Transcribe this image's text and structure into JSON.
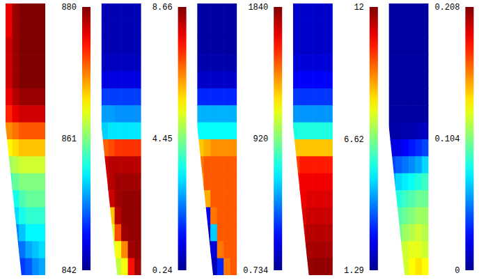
{
  "chart_data": [
    {
      "type": "heatmap",
      "cells": [
        [
          876,
          879,
          880,
          880,
          880,
          880
        ],
        [
          876,
          879,
          880,
          880,
          880,
          880
        ],
        [
          877,
          879,
          880,
          880,
          880,
          880
        ],
        [
          877,
          879,
          880,
          880,
          880,
          880
        ],
        [
          877,
          879,
          880,
          880,
          880,
          880
        ],
        [
          876,
          878,
          879,
          879,
          879,
          879
        ],
        [
          874,
          876,
          877,
          877,
          877,
          877
        ],
        [
          870,
          871,
          872,
          872,
          872,
          872
        ],
        [
          866,
          867,
          868,
          868,
          868,
          868
        ],
        [
          862,
          863,
          864,
          864,
          864,
          864
        ],
        [
          858,
          860,
          861,
          861,
          861,
          861
        ],
        [
          null,
          857,
          859,
          860,
          860,
          860
        ],
        [
          null,
          855,
          857,
          858,
          858,
          858
        ],
        [
          null,
          852,
          854,
          856,
          856,
          856
        ],
        [
          null,
          850,
          851,
          853,
          854,
          855
        ],
        [
          null,
          null,
          849,
          850,
          852,
          853
        ]
      ],
      "colorbar": {
        "range": [
          842,
          880
        ],
        "ticks": [
          842,
          861,
          880
        ]
      }
    },
    {
      "type": "heatmap",
      "cells": [
        [
          0.6,
          0.6,
          0.6,
          0.6,
          0.6,
          0.6
        ],
        [
          0.6,
          0.6,
          0.6,
          0.6,
          0.6,
          0.6
        ],
        [
          0.6,
          0.6,
          0.6,
          0.6,
          0.6,
          0.6
        ],
        [
          0.7,
          0.7,
          0.7,
          0.7,
          0.7,
          0.7
        ],
        [
          1.0,
          1.0,
          1.0,
          1.0,
          1.0,
          1.0
        ],
        [
          1.8,
          1.8,
          1.8,
          1.8,
          1.8,
          1.8
        ],
        [
          2.6,
          2.6,
          2.5,
          2.5,
          2.5,
          2.5
        ],
        [
          3.0,
          3.2,
          3.2,
          3.2,
          3.2,
          3.2
        ],
        [
          6.8,
          7.0,
          7.2,
          7.2,
          7.2,
          7.2
        ],
        [
          8.0,
          8.2,
          8.2,
          8.2,
          8.2,
          8.2
        ],
        [
          7.8,
          8.2,
          8.4,
          8.4,
          8.4,
          8.4
        ],
        [
          null,
          8.0,
          8.4,
          8.5,
          8.5,
          8.5
        ],
        [
          null,
          6.0,
          8.2,
          8.5,
          8.5,
          8.5
        ],
        [
          null,
          5.2,
          7.0,
          8.4,
          8.5,
          8.5
        ],
        [
          null,
          5.0,
          5.4,
          6.5,
          8.4,
          8.5
        ],
        [
          null,
          null,
          5.0,
          5.4,
          7.5,
          8.4
        ]
      ],
      "colorbar": {
        "range": [
          0.24,
          8.66
        ],
        "ticks": [
          0.24,
          4.45,
          8.66
        ]
      }
    },
    {
      "type": "heatmap",
      "cells": [
        [
          40,
          40,
          40,
          40,
          40,
          40
        ],
        [
          40,
          40,
          40,
          40,
          40,
          40
        ],
        [
          40,
          40,
          40,
          40,
          40,
          40
        ],
        [
          60,
          60,
          60,
          60,
          60,
          60
        ],
        [
          120,
          120,
          120,
          120,
          120,
          120
        ],
        [
          300,
          300,
          300,
          300,
          300,
          300
        ],
        [
          550,
          550,
          550,
          550,
          550,
          550
        ],
        [
          700,
          700,
          700,
          700,
          700,
          700
        ],
        [
          1250,
          1300,
          1350,
          1350,
          1350,
          1350
        ],
        [
          1400,
          1450,
          1450,
          1450,
          1450,
          1450
        ],
        [
          1350,
          1450,
          1450,
          1450,
          1450,
          1450
        ],
        [
          null,
          1300,
          1450,
          1450,
          1450,
          1450
        ],
        [
          null,
          200,
          1400,
          1450,
          1450,
          1450
        ],
        [
          null,
          100,
          600,
          1450,
          1450,
          1450
        ],
        [
          null,
          80,
          150,
          1400,
          1450,
          1450
        ],
        [
          null,
          null,
          80,
          300,
          1400,
          1450
        ]
      ],
      "colorbar": {
        "range": [
          0.734,
          1840
        ],
        "ticks": [
          0.734,
          920,
          1840
        ]
      }
    },
    {
      "type": "heatmap",
      "cells": [
        [
          2.0,
          2.0,
          2.0,
          2.0,
          2.0,
          2.0
        ],
        [
          2.0,
          2.0,
          2.0,
          2.0,
          2.0,
          2.0
        ],
        [
          2.0,
          2.0,
          2.0,
          2.0,
          2.0,
          2.0
        ],
        [
          2.2,
          2.2,
          2.2,
          2.2,
          2.2,
          2.2
        ],
        [
          2.6,
          2.6,
          2.6,
          2.6,
          2.6,
          2.6
        ],
        [
          3.2,
          3.2,
          3.2,
          3.2,
          3.2,
          3.2
        ],
        [
          4.2,
          4.2,
          4.2,
          4.2,
          4.2,
          4.2
        ],
        [
          5.6,
          5.6,
          5.6,
          5.6,
          5.6,
          5.6
        ],
        [
          8.6,
          8.6,
          8.6,
          8.6,
          8.6,
          8.6
        ],
        [
          10.0,
          10.4,
          10.4,
          10.4,
          10.4,
          10.4
        ],
        [
          10.5,
          10.8,
          10.8,
          10.8,
          10.8,
          10.8
        ],
        [
          null,
          10.8,
          11.0,
          11.0,
          11.0,
          11.0
        ],
        [
          null,
          11.0,
          11.2,
          11.2,
          11.2,
          11.2
        ],
        [
          null,
          11.2,
          11.4,
          11.4,
          11.4,
          11.4
        ],
        [
          null,
          11.4,
          11.6,
          11.6,
          11.6,
          11.6
        ],
        [
          null,
          null,
          11.8,
          11.8,
          11.8,
          11.8
        ]
      ],
      "colorbar": {
        "range": [
          1.29,
          12
        ],
        "ticks": [
          1.29,
          6.62,
          12
        ]
      }
    },
    {
      "type": "heatmap",
      "cells": [
        [
          0.004,
          0.004,
          0.004,
          0.004,
          0.004,
          0.004
        ],
        [
          0.004,
          0.004,
          0.004,
          0.004,
          0.004,
          0.004
        ],
        [
          0.004,
          0.004,
          0.004,
          0.004,
          0.004,
          0.004
        ],
        [
          0.004,
          0.004,
          0.004,
          0.004,
          0.004,
          0.004
        ],
        [
          0.004,
          0.004,
          0.004,
          0.004,
          0.004,
          0.004
        ],
        [
          0.004,
          0.004,
          0.004,
          0.004,
          0.004,
          0.004
        ],
        [
          0.004,
          0.004,
          0.004,
          0.004,
          0.004,
          0.004
        ],
        [
          0.006,
          0.006,
          0.008,
          0.008,
          0.01,
          0.012
        ],
        [
          0.02,
          0.02,
          0.025,
          0.03,
          0.035,
          0.04
        ],
        [
          0.04,
          0.045,
          0.05,
          0.055,
          0.06,
          0.07
        ],
        [
          0.06,
          0.07,
          0.075,
          0.08,
          0.085,
          0.09
        ],
        [
          null,
          0.085,
          0.09,
          0.095,
          0.1,
          0.1
        ],
        [
          null,
          0.095,
          0.1,
          0.105,
          0.11,
          0.11
        ],
        [
          null,
          0.1,
          0.11,
          0.115,
          0.12,
          0.115
        ],
        [
          null,
          0.11,
          0.12,
          0.125,
          0.125,
          0.12
        ],
        [
          null,
          null,
          0.12,
          0.13,
          0.135,
          0.13
        ]
      ],
      "colorbar": {
        "range": [
          0,
          0.208
        ],
        "ticks": [
          0,
          0.104,
          0.208
        ]
      }
    }
  ]
}
